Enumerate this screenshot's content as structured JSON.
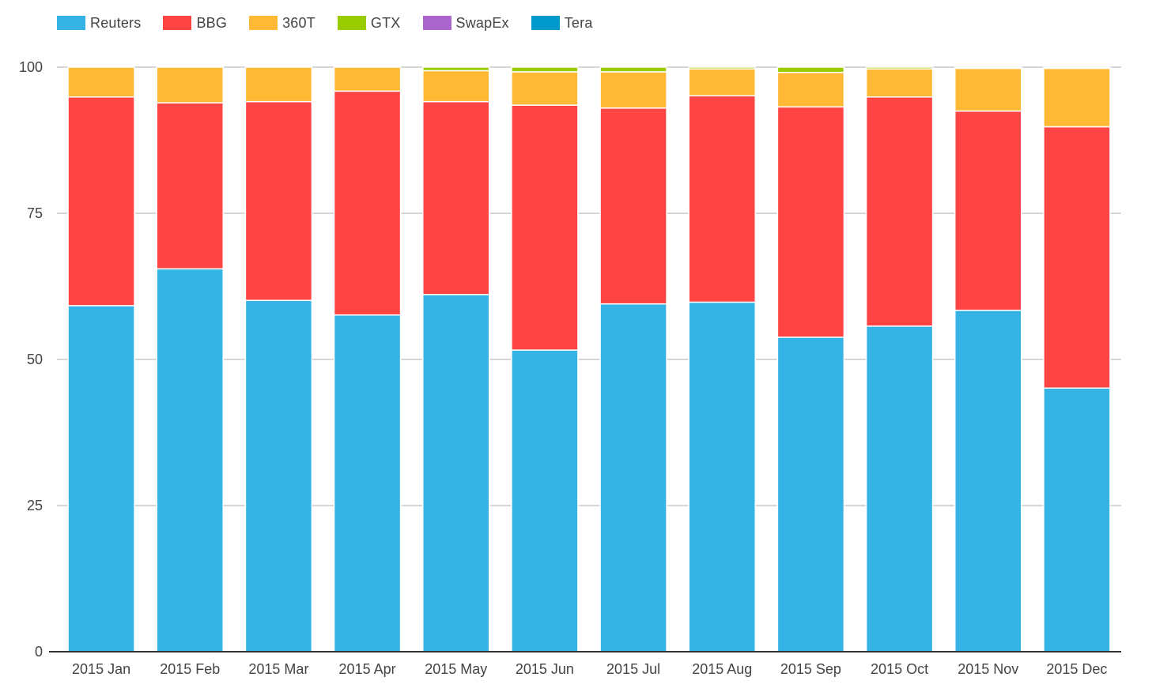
{
  "chart_data": {
    "type": "bar",
    "stacked": true,
    "categories": [
      "2015 Jan",
      "2015 Feb",
      "2015 Mar",
      "2015 Apr",
      "2015 May",
      "2015 Jun",
      "2015 Jul",
      "2015 Aug",
      "2015 Sep",
      "2015 Oct",
      "2015 Nov",
      "2015 Dec"
    ],
    "series": [
      {
        "name": "Reuters",
        "color": "#35b3e4",
        "values": [
          59.2,
          65.5,
          60.1,
          57.6,
          61.1,
          51.6,
          59.5,
          59.8,
          53.8,
          55.7,
          58.4,
          45.1
        ]
      },
      {
        "name": "BBG",
        "color": "#ff4444",
        "values": [
          35.7,
          28.4,
          34.0,
          38.3,
          33.0,
          41.9,
          33.5,
          35.3,
          39.4,
          39.2,
          34.1,
          44.7
        ]
      },
      {
        "name": "360T",
        "color": "#ffb935",
        "values": [
          5.1,
          6.1,
          5.9,
          4.1,
          5.3,
          5.7,
          6.2,
          4.6,
          5.9,
          4.8,
          7.3,
          10.0
        ]
      },
      {
        "name": "GTX",
        "color": "#99cc00",
        "values": [
          0,
          0,
          0,
          0,
          0.6,
          0.8,
          0.8,
          0.3,
          0.9,
          0.3,
          0.2,
          0.2
        ]
      },
      {
        "name": "SwapEx",
        "color": "#aa66cc",
        "values": [
          0,
          0,
          0,
          0,
          0,
          0,
          0,
          0,
          0,
          0,
          0,
          0
        ]
      },
      {
        "name": "Tera",
        "color": "#0099cc",
        "values": [
          0,
          0,
          0,
          0,
          0,
          0,
          0,
          0,
          0,
          0,
          0,
          0
        ]
      }
    ],
    "yticks": [
      0,
      25,
      50,
      75,
      100
    ],
    "ylim": [
      0,
      100
    ],
    "grid": true,
    "legend_position": "top-left"
  },
  "colors": {
    "grid": "#c8c8c8",
    "axis": "#333333",
    "tick_text": "#444444"
  }
}
